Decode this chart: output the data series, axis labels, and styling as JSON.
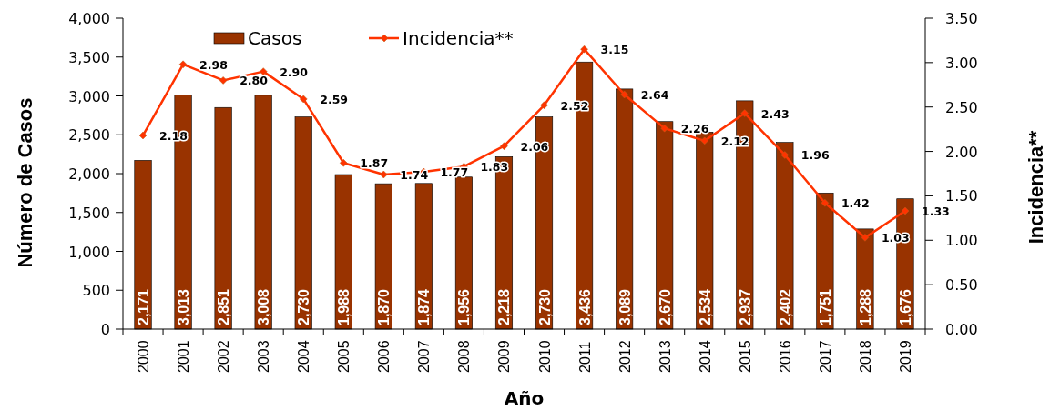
{
  "chart_data": {
    "type": "bar",
    "xlabel": "Año",
    "ylabel": "Número de Casos",
    "y2label": "Incidencia**",
    "categories": [
      "2000",
      "2001",
      "2002",
      "2003",
      "2004",
      "2005",
      "2006",
      "2007",
      "2008",
      "2009",
      "2010",
      "2011",
      "2012",
      "2013",
      "2014",
      "2015",
      "2016",
      "2017",
      "2018",
      "2019"
    ],
    "series": [
      {
        "name": "Casos",
        "color": "#993300",
        "values": [
          2171,
          3013,
          2851,
          3008,
          2730,
          1988,
          1870,
          1874,
          1956,
          2218,
          2730,
          3436,
          3089,
          2670,
          2534,
          2937,
          2402,
          1751,
          1288,
          1676
        ],
        "value_labels": [
          "2,171",
          "3,013",
          "2,851",
          "3,008",
          "2,730",
          "1,988",
          "1,870",
          "1,874",
          "1,956",
          "2,218",
          "2,730",
          "3,436",
          "3,089",
          "2,670",
          "2,534",
          "2,937",
          "2,402",
          "1,751",
          "1,288",
          "1,676"
        ]
      },
      {
        "name": "Incidencia**",
        "type": "line",
        "axis": "y2",
        "color": "#ff3300",
        "marker": "diamond",
        "values": [
          2.18,
          2.98,
          2.8,
          2.9,
          2.59,
          1.87,
          1.74,
          1.77,
          1.83,
          2.06,
          2.52,
          3.15,
          2.64,
          2.26,
          2.12,
          2.43,
          1.96,
          1.42,
          1.03,
          1.33
        ],
        "value_labels": [
          "2.18",
          "2.98",
          "2.80",
          "2.90",
          "2.59",
          "1.87",
          "1.74",
          "1.77",
          "1.83",
          "2.06",
          "2.52",
          "3.15",
          "2.64",
          "2.26",
          "2.12",
          "2.43",
          "1.96",
          "1.42",
          "1.03",
          "1.33"
        ]
      }
    ],
    "ylim": [
      0,
      4000
    ],
    "yticks": [
      {
        "value": 0,
        "label": "0"
      },
      {
        "value": 500,
        "label": "500"
      },
      {
        "value": 1000,
        "label": "1,000"
      },
      {
        "value": 1500,
        "label": "1,500"
      },
      {
        "value": 2000,
        "label": "2,000"
      },
      {
        "value": 2500,
        "label": "2,500"
      },
      {
        "value": 3000,
        "label": "3,000"
      },
      {
        "value": 3500,
        "label": "3,500"
      },
      {
        "value": 4000,
        "label": "4,000"
      }
    ],
    "y2lim": [
      0,
      3.5
    ],
    "y2ticks": [
      {
        "value": 0,
        "label": "0.00"
      },
      {
        "value": 0.5,
        "label": "0.50"
      },
      {
        "value": 1,
        "label": "1.00"
      },
      {
        "value": 1.5,
        "label": "1.50"
      },
      {
        "value": 2,
        "label": "2.00"
      },
      {
        "value": 2.5,
        "label": "2.50"
      },
      {
        "value": 3,
        "label": "3.00"
      },
      {
        "value": 3.5,
        "label": "3.50"
      }
    ],
    "legend": "top",
    "grid": false
  }
}
